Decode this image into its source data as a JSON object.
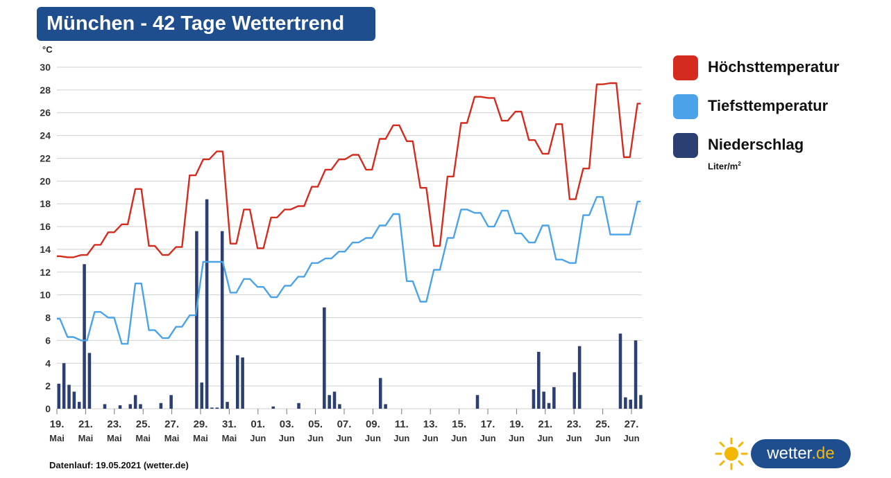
{
  "header": {
    "title": "München - 42 Tage Wettertrend"
  },
  "axis_unit": "°C",
  "legend": {
    "items": [
      {
        "label": "Höchsttemperatur",
        "color": "#d52b1e"
      },
      {
        "label": "Tiefsttemperatur",
        "color": "#4aa3e8"
      },
      {
        "label": "Niederschlag",
        "color": "#2b3f73",
        "unit": "Liter/m",
        "unit_sup": "2"
      }
    ]
  },
  "footer": {
    "text": "Datenlauf: 19.05.2021 (wetter.de)"
  },
  "brand": {
    "name": "wetter",
    "tld": ".de"
  },
  "chart_data": {
    "type": "line",
    "ylim": [
      0,
      30
    ],
    "yticks": [
      0,
      2,
      4,
      6,
      8,
      10,
      12,
      14,
      16,
      18,
      20,
      22,
      24,
      26,
      28,
      30
    ],
    "grid": true,
    "xticks": [
      {
        "day": "19.",
        "month": "Mai"
      },
      {
        "day": "21.",
        "month": "Mai"
      },
      {
        "day": "23.",
        "month": "Mai"
      },
      {
        "day": "25.",
        "month": "Mai"
      },
      {
        "day": "27.",
        "month": "Mai"
      },
      {
        "day": "29.",
        "month": "Mai"
      },
      {
        "day": "31.",
        "month": "Mai"
      },
      {
        "day": "01.",
        "month": "Jun"
      },
      {
        "day": "03.",
        "month": "Jun"
      },
      {
        "day": "05.",
        "month": "Jun"
      },
      {
        "day": "07.",
        "month": "Jun"
      },
      {
        "day": "09.",
        "month": "Jun"
      },
      {
        "day": "11.",
        "month": "Jun"
      },
      {
        "day": "13.",
        "month": "Jun"
      },
      {
        "day": "15.",
        "month": "Jun"
      },
      {
        "day": "17.",
        "month": "Jun"
      },
      {
        "day": "19.",
        "month": "Jun"
      },
      {
        "day": "21.",
        "month": "Jun"
      },
      {
        "day": "23.",
        "month": "Jun"
      },
      {
        "day": "25.",
        "month": "Jun"
      },
      {
        "day": "27.",
        "month": "Jun"
      }
    ],
    "series": [
      {
        "name": "Höchsttemperatur",
        "color": "#d52b1e",
        "values": [
          13.4,
          13.3,
          13.5,
          14.4,
          15.5,
          16.2,
          19.3,
          14.3,
          13.5,
          14.2,
          20.5,
          21.9,
          22.6,
          14.5,
          17.5,
          14.1,
          16.8,
          17.5,
          17.8,
          19.5,
          21.0,
          21.9,
          22.3,
          21.0,
          23.7,
          24.9,
          23.5,
          19.4,
          14.3,
          20.4,
          25.1,
          27.4,
          27.3,
          25.3,
          26.1,
          23.6,
          22.4,
          25.0,
          18.4,
          21.1,
          28.5,
          28.6,
          22.1,
          26.8
        ]
      },
      {
        "name": "Tiefsttemperatur",
        "color": "#4aa3e8",
        "values": [
          7.9,
          6.3,
          6.0,
          8.5,
          8.0,
          5.7,
          11.0,
          6.9,
          6.2,
          7.2,
          8.2,
          12.9,
          12.9,
          10.2,
          11.4,
          10.7,
          9.8,
          10.8,
          11.6,
          12.8,
          13.2,
          13.8,
          14.6,
          15.0,
          16.1,
          17.1,
          11.2,
          9.4,
          12.2,
          15.0,
          17.5,
          17.2,
          16.0,
          17.4,
          15.4,
          14.6,
          16.1,
          13.1,
          12.8,
          17.0,
          18.6,
          15.3,
          15.3,
          18.2
        ]
      },
      {
        "name": "Niederschlag",
        "color": "#2b3f73",
        "values": [
          2.2,
          4.0,
          2.1,
          1.5,
          0.6,
          12.7,
          4.9,
          0.0,
          0.0,
          0.4,
          0.0,
          0.0,
          0.3,
          0.0,
          0.4,
          1.2,
          0.4,
          0.0,
          0.0,
          0.0,
          0.5,
          0.0,
          1.2,
          0.0,
          0.0,
          0.0,
          0.0,
          15.6,
          2.3,
          18.4,
          0.1,
          0.1,
          15.6,
          0.6,
          0.0,
          4.7,
          4.5,
          0.0,
          0.0,
          0.0,
          0.0,
          0.0,
          0.2,
          0.0,
          0.0,
          0.0,
          0.0,
          0.5,
          0.0,
          0.0,
          0.0,
          0.0,
          8.9,
          1.2,
          1.5,
          0.4,
          0.0,
          0.0,
          0.0,
          0.0,
          0.0,
          0.0,
          0.0,
          2.7,
          0.4,
          0.0,
          0.0,
          0.0,
          0.0,
          0.0,
          0.0,
          0.0,
          0.0,
          0.0,
          0.0,
          0.0,
          0.0,
          0.0,
          0.0,
          0.0,
          0.0,
          0.0,
          1.2,
          0.0,
          0.0,
          0.0,
          0.0,
          0.0,
          0.0,
          0.0,
          0.0,
          0.0,
          0.0,
          1.7,
          5.0,
          1.5,
          0.5,
          1.9,
          0.0,
          0.0,
          0.0,
          3.2,
          5.5,
          0.0,
          0.0,
          0.0,
          0.0,
          0.0,
          0.0,
          0.0,
          6.6,
          1.0,
          0.8,
          6.0,
          1.2
        ]
      }
    ]
  }
}
